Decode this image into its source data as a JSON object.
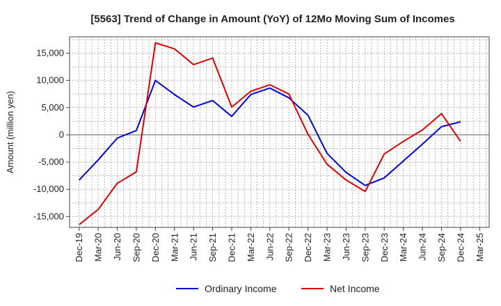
{
  "chart_data": {
    "type": "line",
    "title": "[5563]  Trend of Change in Amount (YoY) of 12Mo Moving Sum of Incomes",
    "xlabel": "",
    "ylabel": "Amount (million yen)",
    "ylim": [
      -17000,
      18000
    ],
    "yticks": [
      -15000,
      -10000,
      -5000,
      0,
      5000,
      10000,
      15000
    ],
    "ytick_labels": [
      "-15,000",
      "-10,000",
      "-5,000",
      "0",
      "5,000",
      "10,000",
      "15,000"
    ],
    "categories": [
      "Dec-19",
      "Mar-20",
      "Jun-20",
      "Sep-20",
      "Dec-20",
      "Mar-21",
      "Jun-21",
      "Sep-21",
      "Dec-21",
      "Mar-22",
      "Jun-22",
      "Sep-22",
      "Dec-22",
      "Mar-23",
      "Jun-23",
      "Sep-23",
      "Dec-23",
      "Mar-24",
      "Jun-24",
      "Sep-24",
      "Dec-24",
      "Mar-25"
    ],
    "grid": true,
    "legend_position": "bottom",
    "series": [
      {
        "name": "Ordinary Income",
        "color": "#0000dd",
        "values": [
          -8300,
          -4600,
          -600,
          800,
          10000,
          7400,
          5100,
          6300,
          3400,
          7400,
          8600,
          6800,
          3600,
          -3400,
          -6900,
          -9300,
          -7900,
          -4800,
          -1700,
          1500,
          2400,
          null
        ]
      },
      {
        "name": "Net Income",
        "color": "#dd0000",
        "values": [
          -16500,
          -13700,
          -8900,
          -6800,
          16900,
          15800,
          12900,
          14100,
          5100,
          8000,
          9200,
          7500,
          100,
          -5400,
          -8300,
          -10400,
          -3500,
          -1200,
          900,
          3900,
          -1200,
          null
        ]
      }
    ]
  }
}
